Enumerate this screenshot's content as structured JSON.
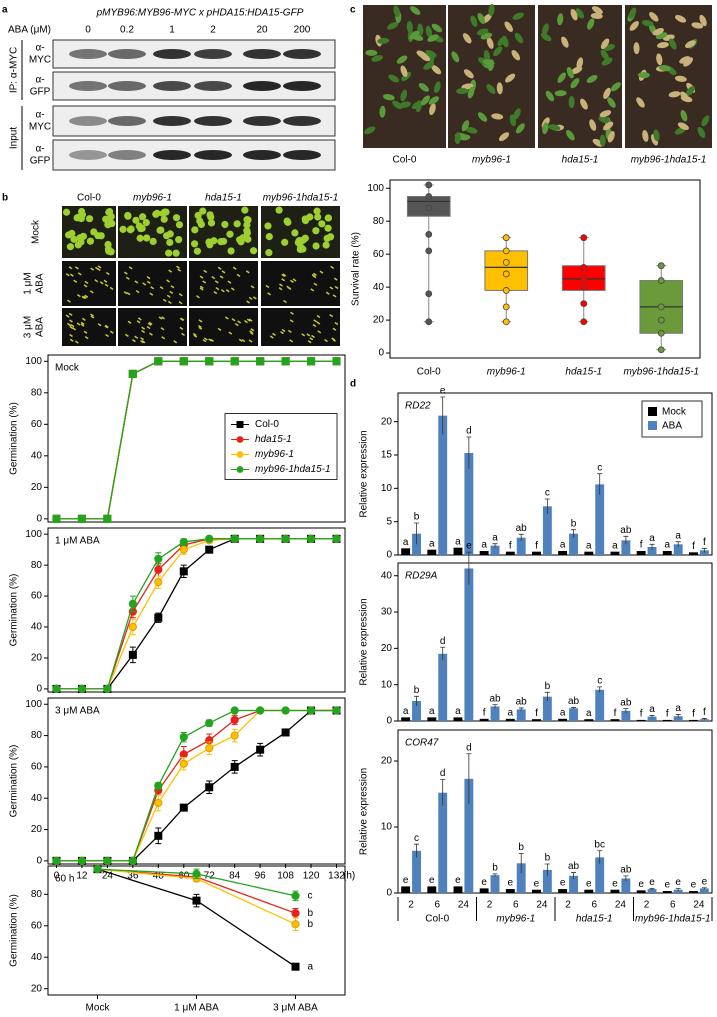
{
  "panel_labels": [
    "a",
    "b",
    "c",
    "d"
  ],
  "blot": {
    "title": "pMYB96:MYB96-MYC x pHDA15:HDA15-GFP",
    "concentration_label": "ABA (μM)",
    "concentrations": [
      "0",
      "0.2",
      "1",
      "2",
      "20",
      "200"
    ],
    "rows": [
      [
        "α-",
        "MYC"
      ],
      [
        "α-",
        "GFP"
      ],
      [
        "α-",
        "MYC"
      ],
      [
        "α-",
        "GFP"
      ]
    ],
    "groups": [
      "IP: α-MYC",
      "Input"
    ]
  },
  "germination_photos": {
    "columns": [
      "Col-0",
      "myb96-1",
      "hda15-1",
      "myb96-1hda15-1"
    ],
    "rows": [
      [
        "Mock"
      ],
      [
        "1 μM",
        "ABA"
      ],
      [
        "3 μM",
        "ABA"
      ]
    ]
  },
  "survival_photos": {
    "columns": [
      "Col-0",
      "myb96-1",
      "hda15-1",
      "myb96-1hda15-1"
    ]
  },
  "chart_data": [
    {
      "type": "line",
      "annotation": "Mock",
      "ylabel": "Germination (%)",
      "x": [
        0,
        12,
        24,
        36,
        48,
        60,
        72,
        84,
        96,
        108,
        120,
        132
      ],
      "xlim": [
        -4,
        136
      ],
      "ylim": [
        -2,
        104
      ],
      "yticks": [
        0,
        20,
        40,
        60,
        80,
        100
      ],
      "legend": "center-right",
      "series": [
        {
          "name": "Col-0",
          "color": "#000000",
          "marker": "square",
          "values": [
            0,
            0,
            0,
            92,
            100,
            100,
            100,
            100,
            100,
            100,
            100,
            100
          ]
        },
        {
          "name": "hda15-1",
          "color": "#e8211a",
          "marker": "square",
          "values": [
            0,
            0,
            0,
            92,
            100,
            100,
            100,
            100,
            100,
            100,
            100,
            100
          ]
        },
        {
          "name": "myb96-1",
          "color": "#ffc000",
          "marker": "square",
          "values": [
            0,
            0,
            0,
            92,
            100,
            100,
            100,
            100,
            100,
            100,
            100,
            100
          ]
        },
        {
          "name": "myb96-1hda15-1",
          "color": "#22a51e",
          "marker": "square",
          "values": [
            0,
            0,
            0,
            92,
            100,
            100,
            100,
            100,
            100,
            100,
            100,
            100
          ]
        }
      ]
    },
    {
      "type": "line",
      "annotation": "1 μM ABA",
      "ylabel": "Germination (%)",
      "x": [
        0,
        12,
        24,
        36,
        48,
        60,
        72,
        84,
        96,
        108,
        120,
        132
      ],
      "xlim": [
        -4,
        136
      ],
      "ylim": [
        -2,
        104
      ],
      "yticks": [
        0,
        20,
        40,
        60,
        80,
        100
      ],
      "series": [
        {
          "name": "Col-0",
          "color": "#000000",
          "marker": "square",
          "values": [
            0,
            0,
            0,
            22,
            46,
            76,
            90,
            97,
            97,
            97,
            97,
            97
          ],
          "errors": [
            0,
            0,
            0,
            5,
            3,
            4,
            2,
            0,
            0,
            0,
            0,
            0
          ]
        },
        {
          "name": "hda15-1",
          "color": "#e8211a",
          "marker": "circle",
          "values": [
            0,
            0,
            0,
            50,
            77,
            93,
            97,
            97,
            97,
            97,
            97,
            97
          ],
          "errors": [
            0,
            0,
            0,
            4,
            4,
            2,
            1,
            0,
            0,
            0,
            0,
            0
          ]
        },
        {
          "name": "myb96-1",
          "color": "#ffc000",
          "marker": "circle",
          "values": [
            0,
            0,
            0,
            40,
            69,
            90,
            96,
            97,
            97,
            97,
            97,
            97
          ],
          "errors": [
            0,
            0,
            0,
            5,
            4,
            3,
            1,
            0,
            0,
            0,
            0,
            0
          ]
        },
        {
          "name": "myb96-1hda15-1",
          "color": "#22a51e",
          "marker": "circle",
          "values": [
            0,
            0,
            0,
            55,
            84,
            95,
            97,
            97,
            97,
            97,
            97,
            97
          ],
          "errors": [
            0,
            0,
            0,
            5,
            4,
            2,
            1,
            0,
            0,
            0,
            0,
            0
          ]
        }
      ]
    },
    {
      "type": "line",
      "annotation": "3 μM ABA",
      "ylabel": "Germination (%)",
      "xlabel": "(h)",
      "x": [
        0,
        12,
        24,
        36,
        48,
        60,
        72,
        84,
        96,
        108,
        120,
        132
      ],
      "xlim": [
        -4,
        136
      ],
      "xticks": [
        0,
        12,
        24,
        36,
        48,
        60,
        72,
        84,
        96,
        108,
        120,
        132
      ],
      "ylim": [
        -2,
        104
      ],
      "yticks": [
        0,
        20,
        40,
        60,
        80,
        100
      ],
      "series": [
        {
          "name": "Col-0",
          "color": "#000000",
          "marker": "square",
          "values": [
            0,
            0,
            0,
            0,
            16,
            34,
            47,
            60,
            71,
            82,
            96,
            96
          ],
          "errors": [
            0,
            0,
            0,
            0,
            5,
            1,
            4,
            4,
            4,
            2,
            0,
            0
          ]
        },
        {
          "name": "hda15-1",
          "color": "#e8211a",
          "marker": "circle",
          "values": [
            0,
            0,
            0,
            0,
            45,
            68,
            77,
            90,
            96,
            96,
            96,
            96
          ],
          "errors": [
            0,
            0,
            0,
            0,
            3,
            5,
            4,
            3,
            1,
            0,
            0,
            0
          ]
        },
        {
          "name": "myb96-1",
          "color": "#ffc000",
          "marker": "circle",
          "values": [
            0,
            0,
            0,
            0,
            37,
            62,
            72,
            80,
            96,
            96,
            96,
            96
          ],
          "errors": [
            0,
            0,
            0,
            0,
            5,
            4,
            4,
            4,
            1,
            0,
            0,
            0
          ]
        },
        {
          "name": "myb96-1hda15-1",
          "color": "#22a51e",
          "marker": "circle",
          "values": [
            0,
            0,
            0,
            0,
            48,
            79,
            88,
            96,
            96,
            96,
            96,
            96
          ],
          "errors": [
            0,
            0,
            0,
            0,
            2,
            3,
            2,
            1,
            0,
            0,
            0,
            0
          ]
        }
      ]
    },
    {
      "type": "line",
      "annotation": "60 h",
      "ylabel": "Germination (%)",
      "categories": [
        "Mock",
        "1 μM ABA",
        "3 μM ABA"
      ],
      "ylim": [
        16,
        98
      ],
      "yticks": [
        20,
        40,
        60,
        80
      ],
      "series": [
        {
          "name": "Col-0",
          "color": "#000000",
          "marker": "square",
          "values": [
            96,
            76,
            34
          ],
          "errors": [
            0,
            4,
            1
          ],
          "letter": "a"
        },
        {
          "name": "hda15-1",
          "color": "#e8211a",
          "marker": "circle",
          "values": [
            96,
            91,
            68
          ],
          "errors": [
            0,
            2,
            3
          ],
          "letter": "b"
        },
        {
          "name": "myb96-1",
          "color": "#ffc000",
          "marker": "circle",
          "values": [
            96,
            90,
            61
          ],
          "errors": [
            0,
            2,
            4
          ],
          "letter": "b"
        },
        {
          "name": "myb96-1hda15-1",
          "color": "#22a51e",
          "marker": "circle",
          "values": [
            96,
            93,
            79
          ],
          "errors": [
            0,
            3,
            3
          ],
          "letter": "c"
        }
      ]
    },
    {
      "type": "box",
      "ylabel": "Survival rate (%)",
      "categories": [
        "Col-0",
        "myb96-1",
        "hda15-1",
        "myb96-1hda15-1"
      ],
      "ylim": [
        -3,
        105
      ],
      "yticks": [
        0,
        20,
        40,
        60,
        80,
        100
      ],
      "boxes": [
        {
          "color": "#555555",
          "min": 19,
          "q1": 83,
          "median": 92,
          "q3": 95,
          "max": 102,
          "points": [
            102,
            95,
            88,
            72,
            62,
            36,
            19
          ]
        },
        {
          "color": "#ffc000",
          "min": 19,
          "q1": 38,
          "median": 52,
          "q3": 62,
          "max": 70,
          "points": [
            70,
            62,
            55,
            48,
            38,
            28,
            19
          ]
        },
        {
          "color": "#ff0000",
          "min": 19,
          "q1": 38,
          "median": 45,
          "q3": 53,
          "max": 70,
          "points": [
            70,
            52,
            45,
            40,
            30,
            19
          ]
        },
        {
          "color": "#6a9a3a",
          "min": 2,
          "q1": 12,
          "median": 28,
          "q3": 44,
          "max": 53,
          "points": [
            53,
            44,
            28,
            20,
            12,
            2
          ]
        }
      ]
    },
    {
      "type": "bar",
      "annotation": "RD22",
      "ylabel": "Relative expression",
      "legend": "top-right",
      "ylim": [
        0,
        24.3
      ],
      "yticks": [
        0,
        5,
        10,
        15,
        20
      ],
      "series": [
        {
          "name": "Mock",
          "color": "#000000",
          "values": [
            1,
            0.8,
            1.1,
            0.6,
            0.5,
            0.5,
            0.6,
            0.5,
            0.5,
            0.6,
            0.6,
            0.4
          ],
          "letters": [
            "a",
            "a",
            "a",
            "a",
            "f",
            "f",
            "a",
            "a",
            "a",
            "f",
            "a",
            "f"
          ]
        },
        {
          "name": "ABA",
          "color": "#4f81bd",
          "values": [
            3.2,
            20.9,
            15.3,
            1.4,
            2.6,
            7.3,
            3.2,
            10.6,
            2.2,
            1.2,
            1.6,
            0.7
          ],
          "errors": [
            1.6,
            2.8,
            2.4,
            0.3,
            0.5,
            1.1,
            0.6,
            1.6,
            0.6,
            0.4,
            0.4,
            0.3
          ],
          "letters": [
            "b",
            "e",
            "d",
            "a",
            "ab",
            "c",
            "b",
            "c",
            "ab",
            "a",
            "a",
            "f"
          ]
        }
      ]
    },
    {
      "type": "bar",
      "annotation": "RD29A",
      "ylabel": "Relative expression",
      "ylim": [
        0,
        43.5
      ],
      "yticks": [
        0,
        10,
        20,
        30,
        40
      ],
      "series": [
        {
          "name": "Mock",
          "color": "#000000",
          "values": [
            1,
            1,
            1,
            0.6,
            0.6,
            0.5,
            0.6,
            0.5,
            0.5,
            0.3,
            0.3,
            0.3
          ],
          "letters": [
            "a",
            "a",
            "a",
            "f",
            "a",
            "f",
            "a",
            "a",
            "f",
            "f",
            "f",
            "f"
          ]
        },
        {
          "name": "ABA",
          "color": "#4f81bd",
          "values": [
            5.5,
            18.5,
            42,
            4,
            3.2,
            6.7,
            3.5,
            8.6,
            2.8,
            1.2,
            1.3,
            0.5
          ],
          "errors": [
            1.3,
            1.8,
            4.5,
            0.5,
            0.4,
            1.2,
            0.2,
            0.8,
            0.6,
            0.3,
            0.5,
            0.2
          ],
          "letters": [
            "b",
            "d",
            "e",
            "ab",
            "ab",
            "b",
            "ab",
            "c",
            "ab",
            "a",
            "a",
            "f"
          ]
        }
      ]
    },
    {
      "type": "bar",
      "annotation": "COR47",
      "ylabel": "Relative expression",
      "ylim": [
        0,
        24.7
      ],
      "yticks": [
        0,
        10,
        20
      ],
      "categories": [
        "2",
        "6",
        "24",
        "2",
        "6",
        "24",
        "2",
        "6",
        "24",
        "2",
        "6",
        "24"
      ],
      "groups": [
        "Col-0",
        "myb96-1",
        "hda15-1",
        "myb96-1hda15-1"
      ],
      "series": [
        {
          "name": "Mock",
          "color": "#000000",
          "values": [
            1,
            1,
            1,
            0.7,
            0.6,
            0.5,
            0.6,
            0.5,
            0.5,
            0.4,
            0.3,
            0.3
          ],
          "letters": [
            "e",
            "e",
            "e",
            "e",
            "e",
            "e",
            "e",
            "e",
            "e",
            "e",
            "e",
            "e"
          ]
        },
        {
          "name": "ABA",
          "color": "#4f81bd",
          "values": [
            6.4,
            15.2,
            17.3,
            2.7,
            4.5,
            3.5,
            2.6,
            5.4,
            2.2,
            0.6,
            0.5,
            0.7
          ],
          "errors": [
            1.0,
            2.0,
            3.8,
            0.2,
            1.5,
            0.9,
            0.5,
            1.0,
            0.4,
            0.1,
            0.2,
            0.1
          ],
          "letters": [
            "c",
            "d",
            "d",
            "b",
            "b",
            "b",
            "ab",
            "bc",
            "ab",
            "e",
            "e",
            "e"
          ]
        }
      ]
    }
  ]
}
